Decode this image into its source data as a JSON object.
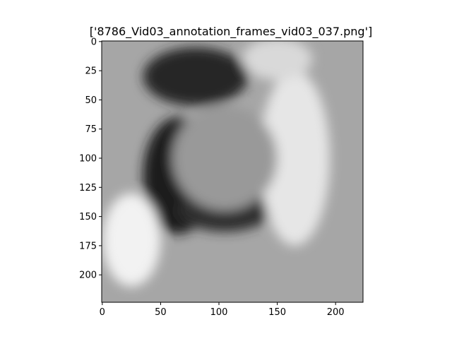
{
  "chart_data": {
    "type": "heatmap",
    "title": "['8786_Vid03_annotation_frames_vid03_037.png']",
    "xlabel": "",
    "ylabel": "",
    "colormap": "gray",
    "image_extent": [
      0,
      224,
      224,
      0
    ],
    "xlim": [
      -0.5,
      223.5
    ],
    "ylim": [
      223.5,
      -0.5
    ],
    "xticks": [
      0,
      50,
      100,
      150,
      200
    ],
    "xtick_labels": [
      "0",
      "50",
      "100",
      "150",
      "200"
    ],
    "yticks": [
      0,
      25,
      50,
      75,
      100,
      125,
      150,
      175,
      200
    ],
    "ytick_labels": [
      "0",
      "25",
      "50",
      "75",
      "100",
      "125",
      "150",
      "175",
      "200"
    ],
    "grid": false,
    "regions": [
      {
        "name": "dark-top",
        "cx": 80,
        "cy": 30,
        "rx": 45,
        "ry": 25,
        "level": 0.15
      },
      {
        "name": "dark-left",
        "cx": 65,
        "cy": 115,
        "rx": 30,
        "ry": 50,
        "level": 0.12
      },
      {
        "name": "dark-bottom",
        "cx": 105,
        "cy": 145,
        "rx": 40,
        "ry": 18,
        "level": 0.18
      },
      {
        "name": "bright-right",
        "cx": 165,
        "cy": 100,
        "rx": 30,
        "ry": 75,
        "level": 0.9
      },
      {
        "name": "bright-topright",
        "cx": 150,
        "cy": 15,
        "rx": 30,
        "ry": 18,
        "level": 0.85
      },
      {
        "name": "bright-bottomleft",
        "cx": 25,
        "cy": 170,
        "rx": 25,
        "ry": 40,
        "level": 0.95
      },
      {
        "name": "center-blob",
        "cx": 105,
        "cy": 100,
        "rx": 45,
        "ry": 45,
        "level": 0.6
      }
    ]
  }
}
